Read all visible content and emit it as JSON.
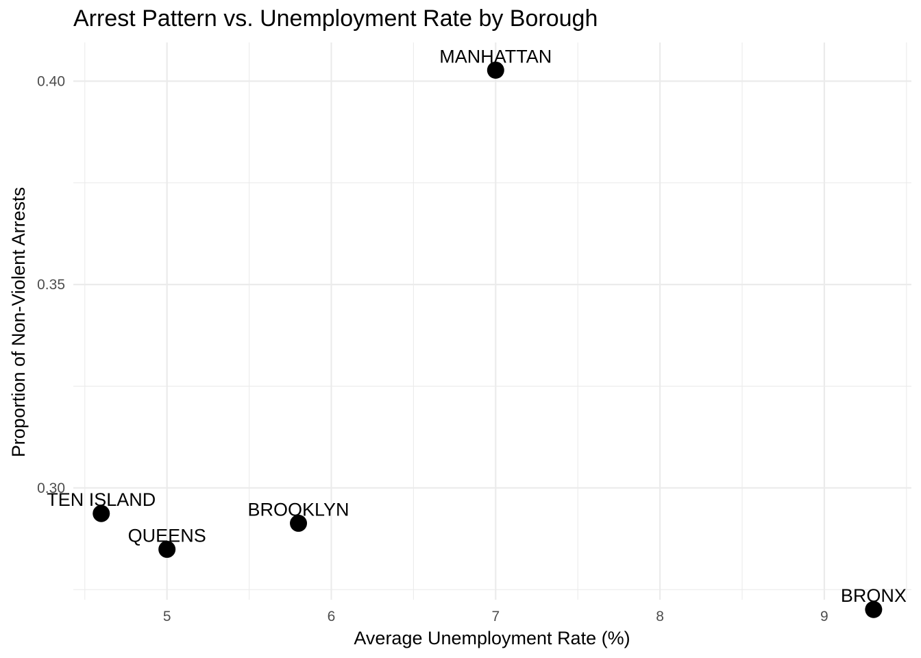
{
  "chart_data": {
    "type": "scatter",
    "title": "Arrest Pattern vs. Unemployment Rate by Borough",
    "xlabel": "Average Unemployment Rate (%)",
    "ylabel": "Proportion of Non-Violent Arrests",
    "xlim": [
      4.43,
      9.53
    ],
    "ylim": [
      0.2725,
      0.4095
    ],
    "x_ticks": [
      5,
      6,
      7,
      8,
      9
    ],
    "x_tick_labels": [
      "5",
      "6",
      "7",
      "8",
      "9"
    ],
    "x_minor_ticks": [
      4.5,
      5.5,
      6.5,
      7.5,
      8.5,
      9.5
    ],
    "y_ticks": [
      0.3,
      0.35,
      0.4
    ],
    "y_tick_labels": [
      "0.30",
      "0.35",
      "0.40"
    ],
    "y_minor_ticks": [
      0.275,
      0.325,
      0.375
    ],
    "grid": true,
    "legend": "none",
    "point_color": "#000000",
    "points": [
      {
        "label": "MANHATTAN",
        "x": 7.0,
        "y": 0.4027
      },
      {
        "label": "TEN ISLAND",
        "x": 4.6,
        "y": 0.2937
      },
      {
        "label": "BROOKLYN",
        "x": 5.8,
        "y": 0.2913
      },
      {
        "label": "QUEENS",
        "x": 5.0,
        "y": 0.2849
      },
      {
        "label": "BRONX",
        "x": 9.3,
        "y": 0.2701
      }
    ]
  }
}
